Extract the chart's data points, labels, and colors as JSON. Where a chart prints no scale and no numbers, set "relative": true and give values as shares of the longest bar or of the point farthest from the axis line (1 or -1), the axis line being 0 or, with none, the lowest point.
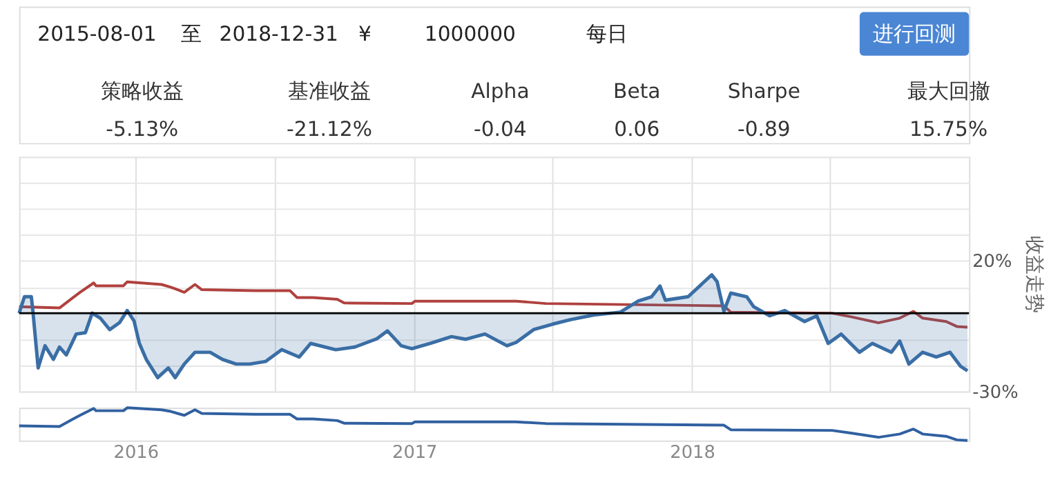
{
  "chart_data": [
    {
      "type": "other",
      "annotations": [
        "2015-08-01",
        "至",
        "2018-12-31",
        "¥",
        "1000000",
        "每日",
        "进行回测",
        "策略收益",
        "-5.13%",
        "基准收益",
        "-21.12%",
        "Alpha",
        "-0.04",
        "Beta",
        "0.06",
        "Sharpe",
        "-0.89",
        "最大回撤",
        "15.75%"
      ]
    },
    {
      "type": "line",
      "y2label": "收益走势",
      "xlim": [
        "2015-08-01",
        "2018-12-31"
      ],
      "ylim": [
        -30,
        60
      ],
      "xticks": [
        {
          "value": "2016-01-01",
          "label": null
        },
        {
          "value": "2016-07-01",
          "label": null
        },
        {
          "value": "2017-01-01",
          "label": null
        },
        {
          "value": "2017-07-01",
          "label": null
        },
        {
          "value": "2018-01-01",
          "label": null
        },
        {
          "value": "2018-07-01",
          "label": null
        }
      ],
      "yticks": [
        {
          "value": -30,
          "label": "-30%"
        },
        {
          "value": -20,
          "label": null
        },
        {
          "value": -10,
          "label": null
        },
        {
          "value": 0,
          "label": null
        },
        {
          "value": 10,
          "label": null
        },
        {
          "value": 20,
          "label": "20%"
        },
        {
          "value": 30,
          "label": null
        },
        {
          "value": 40,
          "label": null
        },
        {
          "value": 50,
          "label": null
        },
        {
          "value": 60,
          "label": null
        }
      ],
      "grid": true,
      "tick_labels": "y",
      "ref_lines": [
        {
          "axis": "y",
          "value": 0,
          "color": "#000000"
        }
      ],
      "series": [
        {
          "type": "line",
          "color": "#b0413e",
          "x": [
            "2015-08-01",
            "2015-09-23",
            "2015-10-11",
            "2015-10-20",
            "2015-11-07",
            "2015-11-10",
            "2015-12-16",
            "2015-12-21",
            "2016-02-04",
            "2016-02-16",
            "2016-03-05",
            "2016-03-19",
            "2016-03-28",
            "2016-06-06",
            "2016-07-22",
            "2016-07-31",
            "2016-08-21",
            "2016-09-22",
            "2016-10-01",
            "2016-12-29",
            "2017-01-02",
            "2017-05-15",
            "2017-06-23",
            "2018-02-12",
            "2018-02-21",
            "2018-07-04",
            "2018-07-29",
            "2018-09-03",
            "2018-10-01",
            "2018-10-19",
            "2018-10-31",
            "2018-12-01",
            "2018-12-15",
            "2018-12-29"
          ],
          "values": [
            2.5,
            2,
            6,
            8,
            11.6,
            10.5,
            10.5,
            12,
            11,
            10,
            8,
            11,
            9,
            8.6,
            8.6,
            6,
            6,
            5.3,
            3.9,
            3.7,
            4.6,
            4.6,
            3.7,
            2.8,
            0.4,
            0,
            -1.4,
            -3.7,
            -1.9,
            0.7,
            -1.9,
            -3.2,
            -5.1,
            -5.4
          ]
        },
        {
          "type": "area",
          "color": "#3a6ea5",
          "x": [
            "2015-08-01",
            "2015-08-08",
            "2015-08-17",
            "2015-08-19",
            "2015-08-26",
            "2015-09-04",
            "2015-09-15",
            "2015-09-23",
            "2015-10-02",
            "2015-10-15",
            "2015-10-27",
            "2015-11-05",
            "2015-11-16",
            "2015-11-28",
            "2015-12-11",
            "2015-12-21",
            "2015-12-30",
            "2016-01-06",
            "2016-01-15",
            "2016-01-30",
            "2016-02-13",
            "2016-02-22",
            "2016-03-05",
            "2016-03-19",
            "2016-04-08",
            "2016-04-24",
            "2016-05-12",
            "2016-05-30",
            "2016-06-20",
            "2016-07-11",
            "2016-08-03",
            "2016-08-18",
            "2016-09-20",
            "2016-10-15",
            "2016-11-13",
            "2016-11-27",
            "2016-12-15",
            "2016-12-29",
            "2017-01-23",
            "2017-02-19",
            "2017-03-10",
            "2017-04-04",
            "2017-05-03",
            "2017-05-15",
            "2017-06-07",
            "2017-07-02",
            "2017-07-25",
            "2017-08-25",
            "2017-09-29",
            "2017-10-22",
            "2017-11-09",
            "2017-11-20",
            "2017-11-27",
            "2017-12-27",
            "2018-01-14",
            "2018-01-27",
            "2018-02-03",
            "2018-02-12",
            "2018-02-21",
            "2018-03-14",
            "2018-03-23",
            "2018-04-13",
            "2018-05-03",
            "2018-05-29",
            "2018-06-14",
            "2018-06-29",
            "2018-07-16",
            "2018-08-09",
            "2018-08-26",
            "2018-09-20",
            "2018-10-01",
            "2018-10-13",
            "2018-10-31",
            "2018-11-18",
            "2018-12-06",
            "2018-12-20",
            "2018-12-29"
          ],
          "values": [
            0,
            6.3,
            6.3,
            1,
            -21,
            -12.5,
            -17.7,
            -13,
            -16,
            -8,
            -7.5,
            0,
            -2,
            -6.3,
            -3.6,
            1,
            -3,
            -11.6,
            -17.7,
            -24.7,
            -21,
            -24.7,
            -19.5,
            -15,
            -15,
            -17.7,
            -19.5,
            -19.5,
            -18.5,
            -14,
            -16.8,
            -11.6,
            -14,
            -13,
            -9.8,
            -6.8,
            -12.5,
            -13.6,
            -11.5,
            -9,
            -10,
            -8,
            -12.5,
            -11.2,
            -6.3,
            -4.2,
            -2.5,
            -0.7,
            0.4,
            4.6,
            6.3,
            10.4,
            5,
            6.3,
            11.2,
            14.7,
            12.1,
            0.7,
            7.7,
            6.3,
            2.5,
            -1,
            1,
            -3.2,
            -1,
            -11.6,
            -8,
            -15,
            -11.6,
            -15,
            -10.7,
            -19.5,
            -15,
            -16.8,
            -15,
            -20.4,
            -22.1
          ]
        }
      ]
    },
    {
      "type": "line",
      "relative": true,
      "xlim": [
        "2015-08-01",
        "2018-12-31"
      ],
      "tick_labels": "x",
      "xticks": [
        {
          "value": "2016-01-01",
          "label": "2016"
        },
        {
          "value": "2017-01-01",
          "label": "2017"
        },
        {
          "value": "2018-01-01",
          "label": "2018"
        }
      ],
      "series": [
        {
          "type": "line",
          "color": "#3060a0",
          "x": [
            "2015-08-01",
            "2015-09-23",
            "2015-10-11",
            "2015-10-20",
            "2015-11-07",
            "2015-11-10",
            "2015-12-16",
            "2015-12-21",
            "2016-02-04",
            "2016-02-16",
            "2016-03-05",
            "2016-03-19",
            "2016-03-28",
            "2016-06-06",
            "2016-07-22",
            "2016-07-31",
            "2016-08-21",
            "2016-09-22",
            "2016-10-01",
            "2016-12-29",
            "2017-01-02",
            "2017-05-15",
            "2017-06-23",
            "2018-02-12",
            "2018-02-21",
            "2018-07-04",
            "2018-07-29",
            "2018-09-03",
            "2018-10-01",
            "2018-10-19",
            "2018-10-31",
            "2018-12-01",
            "2018-12-15",
            "2018-12-29"
          ],
          "values": [
            0.45,
            0.43,
            0.66,
            0.77,
            0.98,
            0.91,
            0.91,
            1,
            0.94,
            0.89,
            0.77,
            0.94,
            0.83,
            0.8,
            0.8,
            0.66,
            0.66,
            0.61,
            0.53,
            0.52,
            0.57,
            0.57,
            0.52,
            0.47,
            0.33,
            0.31,
            0.23,
            0.1,
            0.2,
            0.35,
            0.2,
            0.13,
            0.02,
            0
          ]
        }
      ]
    }
  ]
}
